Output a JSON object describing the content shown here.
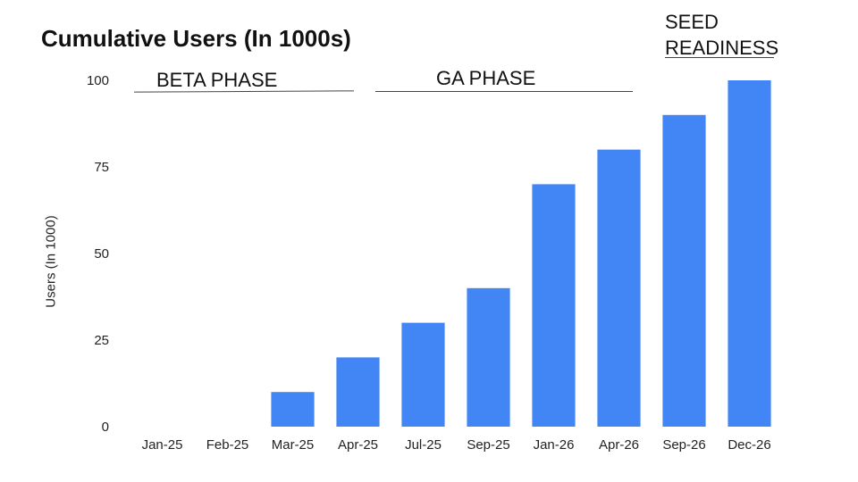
{
  "chart_data": {
    "type": "bar",
    "title": "Cumulative Users (In 1000s)",
    "xlabel": "",
    "ylabel": "Users (In 1000)",
    "categories": [
      "Jan-25",
      "Feb-25",
      "Mar-25",
      "Apr-25",
      "Jul-25",
      "Sep-25",
      "Jan-26",
      "Apr-26",
      "Sep-26",
      "Dec-26"
    ],
    "values": [
      0,
      0,
      10,
      20,
      30,
      40,
      70,
      80,
      90,
      100
    ],
    "ylim": [
      0,
      100
    ],
    "yticks": [
      0,
      25,
      50,
      75,
      100
    ],
    "grid": false,
    "legend": "none",
    "bar_color": "#4285f4",
    "annotations": {
      "beta": "BETA PHASE",
      "ga": "GA PHASE",
      "seed_line1": "SEED",
      "seed_line2": "READINESS"
    }
  }
}
